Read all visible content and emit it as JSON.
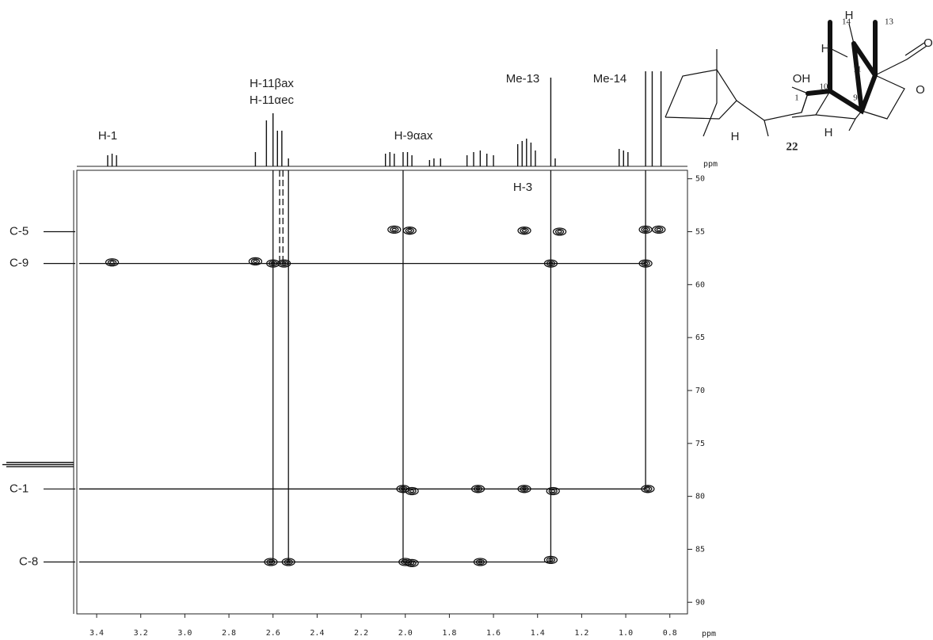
{
  "chart_data": {
    "type": "scatter",
    "xlabel": "ppm",
    "top_spectrum_label": "ppm",
    "xlim": [
      3.49,
      0.72
    ],
    "ylim": [
      49.2,
      91.1
    ],
    "xticks": [
      3.4,
      3.2,
      {
        "value": 3,
        "label": "3.0"
      },
      2.8,
      2.6,
      2.4,
      2.2,
      {
        "value": 2,
        "label": "2.0"
      },
      1.8,
      1.6,
      1.4,
      1.2,
      {
        "value": 1,
        "label": "1.0"
      },
      0.8
    ],
    "yticks": [
      50,
      55,
      60,
      65,
      70,
      75,
      80,
      85,
      90
    ],
    "annotations": [
      "H-1",
      "H-11βax",
      "H-11αec",
      "H-9αax",
      "Me-13",
      "Me-14",
      "H-3"
    ],
    "row_labels": [
      {
        "text": "C-5",
        "y": 55
      },
      {
        "text": "C-9",
        "y": 58
      },
      {
        "text": "C-1",
        "y": 79.3
      },
      {
        "text": "C-8",
        "y": 86.2
      }
    ],
    "vlines": [
      2.6,
      2.53,
      2.01,
      1.34,
      0.91
    ],
    "dashed_vlines": [
      2.57,
      2.555
    ],
    "x": [
      3.33,
      2.68,
      2.6,
      2.55,
      2.05,
      1.98,
      1.46,
      1.3,
      0.91,
      0.85,
      1.34,
      0.91,
      2.01,
      1.97,
      1.67,
      1.46,
      1.33,
      0.9,
      2.61,
      2.53,
      2.0,
      1.97,
      1.66,
      1.34
    ],
    "values": [
      57.9,
      57.8,
      58.0,
      58.0,
      54.8,
      54.9,
      54.9,
      55.0,
      54.8,
      54.8,
      58.0,
      58.0,
      79.3,
      79.5,
      79.3,
      79.3,
      79.5,
      79.3,
      86.2,
      86.2,
      86.2,
      86.3,
      86.2,
      86.0
    ],
    "top_spectrum": {
      "x": [
        3.35,
        3.33,
        3.31,
        2.68,
        2.63,
        2.6,
        2.58,
        2.56,
        2.53,
        2.09,
        2.07,
        2.05,
        2.01,
        1.99,
        1.97,
        1.89,
        1.87,
        1.84,
        1.72,
        1.69,
        1.66,
        1.63,
        1.6,
        1.49,
        1.47,
        1.45,
        1.43,
        1.41,
        1.34,
        1.32,
        1.03,
        1.01,
        0.99,
        0.91,
        0.88,
        0.84
      ],
      "values": [
        14,
        16,
        14,
        18,
        58,
        67,
        45,
        45,
        10,
        16,
        18,
        16,
        18,
        18,
        14,
        8,
        10,
        10,
        14,
        18,
        20,
        16,
        14,
        28,
        32,
        35,
        30,
        20,
        112,
        10,
        22,
        20,
        18,
        120,
        120,
        120
      ]
    },
    "left_spectrum": {
      "y": [
        76.8,
        77.0,
        77.2
      ],
      "values": [
        85,
        90,
        85
      ]
    },
    "structure": {
      "labels": [
        "14",
        "13",
        "H",
        "H",
        "11",
        "OH",
        "10",
        "1",
        "9",
        "O",
        "O",
        "H",
        "H",
        "22"
      ]
    }
  }
}
